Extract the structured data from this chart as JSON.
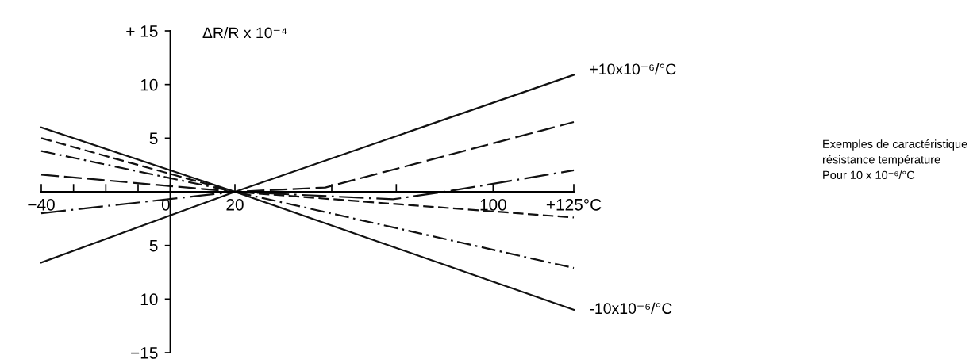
{
  "chart_data": {
    "type": "line",
    "ylabel": "ΔR/R x 10⁻⁴",
    "annotations": [
      "Exemples de caractéristique\nrésistance température\nPour 10 x 10⁻⁶/°C"
    ],
    "xlim": [
      -40,
      125
    ],
    "ylim": [
      -15,
      15
    ],
    "xticks": [
      {
        "value": -40,
        "label": "−40"
      },
      {
        "value": -30,
        "label": null
      },
      {
        "value": -20,
        "label": null
      },
      {
        "value": -10,
        "label": null
      },
      0,
      20,
      {
        "value": 50,
        "label": null
      },
      {
        "value": 70,
        "label": null
      },
      100,
      {
        "value": 125,
        "label": "+125°C"
      }
    ],
    "yticks": [
      {
        "value": 15,
        "label": "+ 15"
      },
      10,
      5,
      {
        "value": -5,
        "label": "5"
      },
      {
        "value": -10,
        "label": "10"
      },
      {
        "value": -15,
        "label": "−15"
      }
    ],
    "series": [
      {
        "name": "+10x10⁻⁶/°C",
        "color": "#111111",
        "line_style": "solid",
        "x": [
          -40,
          20,
          125
        ],
        "values": [
          -6.6,
          0,
          10.9
        ]
      },
      {
        "name": "-10x10⁻⁶/°C",
        "color": "#111111",
        "line_style": "solid",
        "x": [
          -40,
          20,
          125
        ],
        "values": [
          6.0,
          0,
          -11.0
        ]
      },
      {
        "color": "#111111",
        "line_style": "dashed",
        "x": [
          -40,
          20,
          125
        ],
        "values": [
          5.0,
          0,
          -2.4
        ]
      },
      {
        "color": "#111111",
        "line_style": "dashdot",
        "x": [
          -40,
          20,
          125
        ],
        "values": [
          3.8,
          0,
          -7.1
        ]
      },
      {
        "color": "#111111",
        "line_style": "longdash",
        "x": [
          -40,
          20,
          48,
          125
        ],
        "values": [
          1.6,
          0,
          0.4,
          6.5
        ]
      },
      {
        "color": "#111111",
        "line_style": "longdashdot",
        "x": [
          -40,
          20,
          69,
          87,
          125
        ],
        "values": [
          -2.0,
          0,
          -0.7,
          0.1,
          2.0
        ]
      }
    ]
  }
}
